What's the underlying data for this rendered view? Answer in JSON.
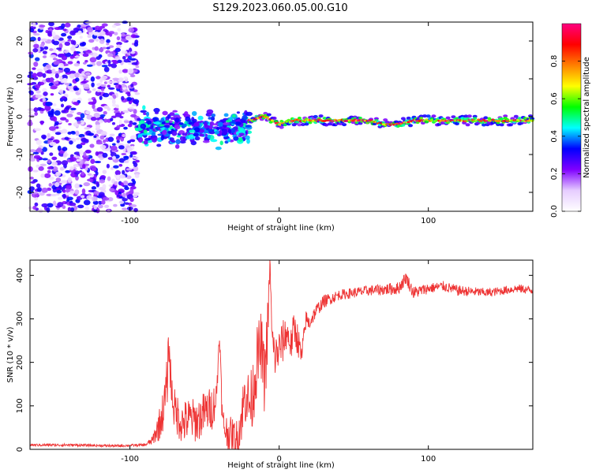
{
  "figure": {
    "title": "S129.2023.060.05.00.G10"
  },
  "chart_data": [
    {
      "type": "heatmap",
      "xlabel": "Height of straight line (km)",
      "ylabel": "Frequency (Hz)",
      "xlim": [
        -167,
        170
      ],
      "ylim": [
        -25,
        25
      ],
      "x_ticks": [
        -100,
        0,
        100
      ],
      "y_ticks": [
        -20,
        -10,
        0,
        10,
        20
      ],
      "colorbar": {
        "label": "Normalized spectral amplitude",
        "range": [
          0,
          1
        ],
        "ticks": [
          0.0,
          0.2,
          0.4,
          0.6,
          0.8
        ],
        "colors": [
          "#ffffff",
          "#e6ccff",
          "#8000ff",
          "#0000ff",
          "#00ffff",
          "#00ff00",
          "#ffff00",
          "#ff8000",
          "#ff0000",
          "#ff0080"
        ]
      },
      "regions": [
        {
          "x_range": [
            -167,
            -95
          ],
          "description": "broadband noise",
          "amplitude_range": [
            0.05,
            0.35
          ]
        },
        {
          "x_range": [
            -95,
            -20
          ],
          "freq_center": -3,
          "freq_spread": 4,
          "amplitude_range": [
            0.2,
            0.5
          ]
        },
        {
          "x_range": [
            -20,
            170
          ],
          "freq_center": -0.8,
          "freq_spread": 0.8,
          "amplitude_range": [
            0.6,
            1.0
          ]
        }
      ],
      "centerline": {
        "x": [
          -20,
          -10,
          -5,
          0,
          10,
          30,
          60,
          70,
          80,
          90,
          100,
          120,
          170
        ],
        "freq": [
          -1,
          0,
          -1,
          -2,
          -1,
          -1,
          -1,
          -2,
          -2,
          -1,
          -1,
          -1,
          -1
        ]
      }
    },
    {
      "type": "line",
      "xlabel": "Height of straight line (km)",
      "ylabel": "SNR (10 * v/v)",
      "xlim": [
        -167,
        170
      ],
      "ylim": [
        0,
        435
      ],
      "x_ticks": [
        -100,
        0,
        100
      ],
      "y_ticks": [
        0,
        100,
        200,
        300,
        400
      ],
      "series": [
        {
          "color": "#ee3333",
          "x": [
            -167,
            -140,
            -110,
            -90,
            -85,
            -80,
            -77,
            -75,
            -74,
            -72,
            -70,
            -65,
            -60,
            -55,
            -50,
            -45,
            -42,
            -40,
            -38,
            -35,
            -30,
            -28,
            -25,
            -22,
            -20,
            -18,
            -15,
            -12,
            -10,
            -8,
            -6,
            -5,
            -3,
            0,
            3,
            5,
            8,
            10,
            12,
            15,
            18,
            20,
            25,
            30,
            40,
            60,
            80,
            85,
            90,
            100,
            110,
            120,
            140,
            160,
            170
          ],
          "y": [
            10,
            10,
            8,
            10,
            20,
            60,
            100,
            160,
            240,
            130,
            90,
            60,
            70,
            65,
            85,
            95,
            120,
            270,
            60,
            40,
            30,
            20,
            80,
            140,
            100,
            120,
            200,
            240,
            160,
            250,
            435,
            260,
            210,
            230,
            250,
            270,
            240,
            280,
            260,
            210,
            300,
            290,
            320,
            340,
            355,
            365,
            370,
            395,
            360,
            370,
            375,
            365,
            360,
            370,
            365
          ],
          "jitter": [
            3,
            3,
            3,
            3,
            10,
            40,
            50,
            60,
            40,
            50,
            50,
            50,
            50,
            50,
            50,
            50,
            40,
            20,
            40,
            40,
            40,
            50,
            60,
            80,
            60,
            80,
            80,
            80,
            80,
            80,
            20,
            60,
            50,
            50,
            50,
            40,
            40,
            40,
            40,
            30,
            20,
            20,
            15,
            15,
            12,
            12,
            15,
            15,
            15,
            12,
            12,
            12,
            10,
            10,
            10
          ]
        }
      ]
    }
  ]
}
